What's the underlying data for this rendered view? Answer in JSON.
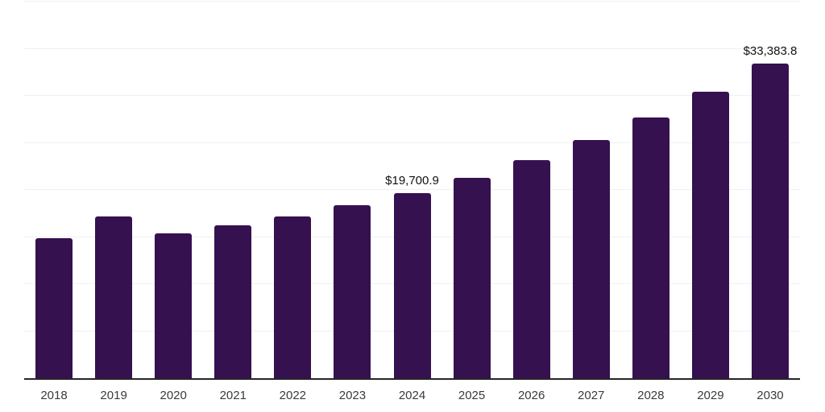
{
  "chart_data": {
    "type": "bar",
    "title": "",
    "xlabel": "",
    "ylabel": "",
    "categories": [
      "2018",
      "2019",
      "2020",
      "2021",
      "2022",
      "2023",
      "2024",
      "2025",
      "2026",
      "2027",
      "2028",
      "2029",
      "2030"
    ],
    "values": [
      14900,
      17200,
      15400,
      16250,
      17200,
      18350,
      19700.9,
      21300,
      23150,
      25300,
      27700,
      30450,
      33383.8
    ],
    "point_labels": [
      "",
      "",
      "",
      "",
      "",
      "",
      "$19,700.9",
      "",
      "",
      "",
      "",
      "",
      "$33,383.8"
    ],
    "ylim": [
      0,
      40000
    ],
    "gridline_step": 5000,
    "grid": true,
    "legend": false,
    "y_axis_labels_visible": false,
    "colors": {
      "bar": "#361150",
      "axis": "#262626",
      "gridline": "#f0f0f0",
      "value_label": "#111111",
      "tick_label": "#3a3a3a",
      "background": "#ffffff"
    }
  }
}
